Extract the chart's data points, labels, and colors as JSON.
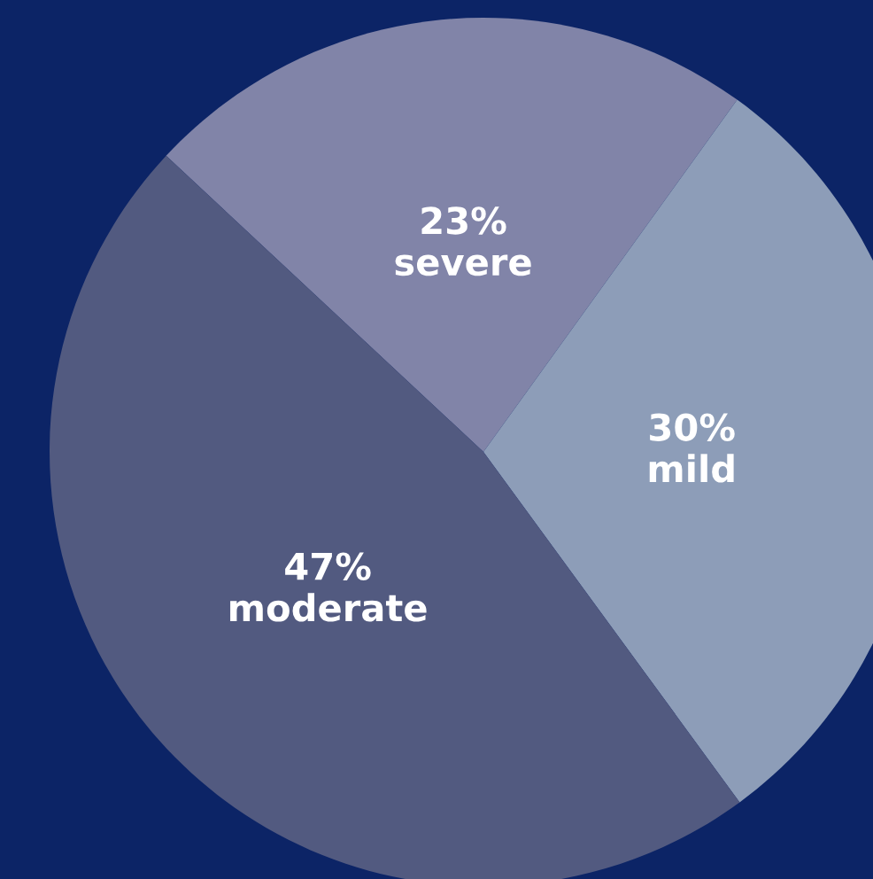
{
  "chart_data": {
    "type": "pie",
    "categories": [
      "severe",
      "mild",
      "moderate"
    ],
    "values": [
      23,
      30,
      47
    ],
    "value_labels": [
      "23%",
      "30%",
      "47%"
    ],
    "colors": [
      "#8184a8",
      "#8d9db8",
      "#525a80"
    ]
  }
}
